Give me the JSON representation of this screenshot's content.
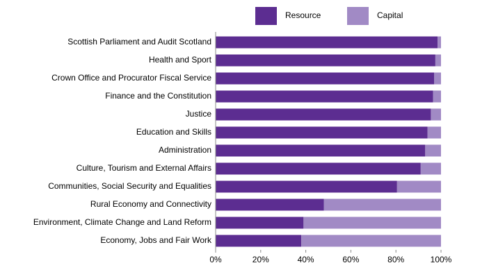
{
  "chart_data": {
    "type": "stacked-barh",
    "categories": [
      "Scottish Parliament and Audit Scotland",
      "Health and Sport",
      "Crown Office and Procurator Fiscal Service",
      "Finance and the Constitution ",
      "Justice",
      "Education and Skills",
      "Administration",
      "Culture, Tourism and External Affairs",
      "Communities, Social Security and Equalities",
      "Rural Economy and Connectivity",
      "Environment, Climate Change and Land Reform",
      "Economy, Jobs and Fair Work"
    ],
    "series": [
      {
        "name": "Resource",
        "color": "#5c2d91",
        "values": [
          98.5,
          97.5,
          97,
          96.5,
          95.5,
          94,
          93,
          91,
          80.5,
          48,
          39,
          38
        ]
      },
      {
        "name": "Capital",
        "color": "#a18ac5",
        "values": [
          1.5,
          2.5,
          3,
          3.5,
          4.5,
          6,
          7,
          9,
          19.5,
          52,
          61,
          62
        ]
      }
    ],
    "xlim": [
      0,
      100
    ],
    "xticks": [
      {
        "value": 0,
        "label": "0%"
      },
      {
        "value": 20,
        "label": "20%"
      },
      {
        "value": 40,
        "label": "40%"
      },
      {
        "value": 60,
        "label": "60%"
      },
      {
        "value": 80,
        "label": "80%"
      },
      {
        "value": 100,
        "label": "100%"
      }
    ],
    "legend": "top"
  }
}
